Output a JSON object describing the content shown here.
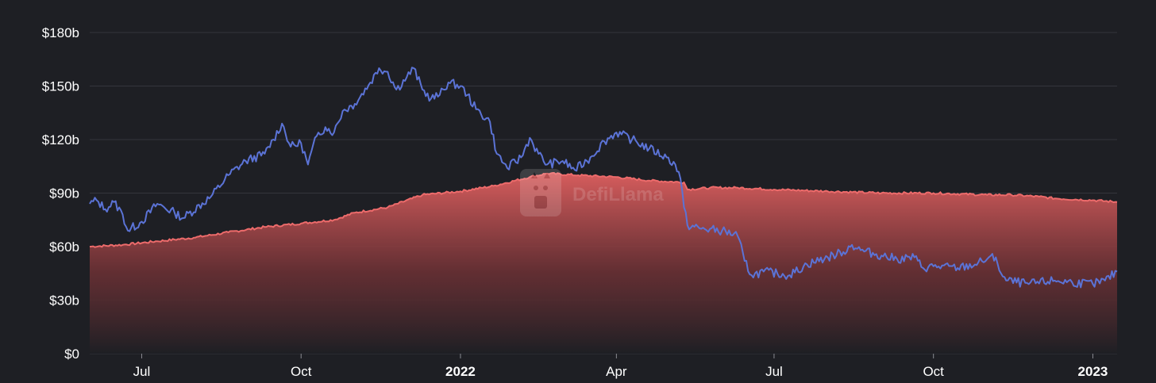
{
  "watermark": {
    "text": "DefiLlama"
  },
  "colors": {
    "background": "#1e1f24",
    "grid": "#34353c",
    "tvl_line": "#ed6b6b",
    "tvl_fill_top": "#e06060",
    "price_line": "#5b73d6"
  },
  "chart_data": {
    "type": "area",
    "title": "",
    "xlabel": "",
    "ylabel": "",
    "ylim": [
      0,
      180
    ],
    "y_unit": "$b",
    "y_ticks": [
      "$0",
      "$30b",
      "$60b",
      "$90b",
      "$120b",
      "$150b",
      "$180b"
    ],
    "y_tick_values": [
      0,
      30,
      60,
      90,
      120,
      150,
      180
    ],
    "x_ticks": [
      {
        "label": "Jul",
        "date": "2021-07-01",
        "bold": false
      },
      {
        "label": "Oct",
        "date": "2021-10-01",
        "bold": false
      },
      {
        "label": "2022",
        "date": "2022-01-01",
        "bold": true
      },
      {
        "label": "Apr",
        "date": "2022-04-01",
        "bold": false
      },
      {
        "label": "Jul",
        "date": "2022-07-01",
        "bold": false
      },
      {
        "label": "Oct",
        "date": "2022-10-01",
        "bold": false
      },
      {
        "label": "2023",
        "date": "2023-01-01",
        "bold": true
      }
    ],
    "x_range": [
      "2021-06-01",
      "2023-01-15"
    ],
    "grid": true,
    "legend": "none",
    "series": [
      {
        "kind": "area",
        "points": [
          [
            "2021-06-01",
            60
          ],
          [
            "2021-06-20",
            61
          ],
          [
            "2021-07-10",
            63
          ],
          [
            "2021-07-31",
            65
          ],
          [
            "2021-08-20",
            68
          ],
          [
            "2021-09-10",
            71
          ],
          [
            "2021-10-01",
            73
          ],
          [
            "2021-10-20",
            75
          ],
          [
            "2021-11-01",
            79
          ],
          [
            "2021-11-20",
            82
          ],
          [
            "2021-12-10",
            89
          ],
          [
            "2022-01-01",
            91
          ],
          [
            "2022-01-20",
            94
          ],
          [
            "2022-02-10",
            99
          ],
          [
            "2022-02-20",
            101
          ],
          [
            "2022-03-10",
            100
          ],
          [
            "2022-04-01",
            99
          ],
          [
            "2022-04-20",
            97
          ],
          [
            "2022-05-10",
            96
          ],
          [
            "2022-05-12",
            92
          ],
          [
            "2022-05-25",
            93
          ],
          [
            "2022-06-10",
            93
          ],
          [
            "2022-07-01",
            92
          ],
          [
            "2022-08-01",
            91
          ],
          [
            "2022-09-01",
            90
          ],
          [
            "2022-10-01",
            90
          ],
          [
            "2022-11-01",
            89
          ],
          [
            "2022-11-15",
            89
          ],
          [
            "2022-12-01",
            88
          ],
          [
            "2022-12-10",
            87
          ],
          [
            "2023-01-01",
            86
          ],
          [
            "2023-01-15",
            85
          ]
        ]
      },
      {
        "kind": "line",
        "points": [
          [
            "2021-06-01",
            84
          ],
          [
            "2021-06-05",
            86
          ],
          [
            "2021-06-10",
            81
          ],
          [
            "2021-06-15",
            85
          ],
          [
            "2021-06-20",
            78
          ],
          [
            "2021-06-23",
            69
          ],
          [
            "2021-07-01",
            74
          ],
          [
            "2021-07-10",
            84
          ],
          [
            "2021-07-20",
            79
          ],
          [
            "2021-07-25",
            76
          ],
          [
            "2021-08-10",
            88
          ],
          [
            "2021-08-20",
            100
          ],
          [
            "2021-08-30",
            108
          ],
          [
            "2021-09-10",
            112
          ],
          [
            "2021-09-15",
            120
          ],
          [
            "2021-09-20",
            129
          ],
          [
            "2021-09-25",
            116
          ],
          [
            "2021-10-01",
            118
          ],
          [
            "2021-10-05",
            106
          ],
          [
            "2021-10-10",
            122
          ],
          [
            "2021-10-15",
            127
          ],
          [
            "2021-10-20",
            124
          ],
          [
            "2021-10-25",
            136
          ],
          [
            "2021-11-01",
            140
          ],
          [
            "2021-11-10",
            152
          ],
          [
            "2021-11-15",
            160
          ],
          [
            "2021-11-20",
            158
          ],
          [
            "2021-11-25",
            148
          ],
          [
            "2021-12-01",
            155
          ],
          [
            "2021-12-05",
            160
          ],
          [
            "2021-12-10",
            148
          ],
          [
            "2021-12-15",
            143
          ],
          [
            "2021-12-20",
            145
          ],
          [
            "2021-12-25",
            152
          ],
          [
            "2022-01-01",
            150
          ],
          [
            "2022-01-05",
            145
          ],
          [
            "2022-01-10",
            137
          ],
          [
            "2022-01-18",
            130
          ],
          [
            "2022-01-22",
            112
          ],
          [
            "2022-01-28",
            104
          ],
          [
            "2022-02-05",
            110
          ],
          [
            "2022-02-10",
            121
          ],
          [
            "2022-02-15",
            112
          ],
          [
            "2022-02-20",
            106
          ],
          [
            "2022-03-01",
            108
          ],
          [
            "2022-03-08",
            103
          ],
          [
            "2022-03-15",
            108
          ],
          [
            "2022-03-25",
            119
          ],
          [
            "2022-04-01",
            124
          ],
          [
            "2022-04-10",
            120
          ],
          [
            "2022-04-20",
            115
          ],
          [
            "2022-04-30",
            110
          ],
          [
            "2022-05-05",
            106
          ],
          [
            "2022-05-08",
            98
          ],
          [
            "2022-05-10",
            82
          ],
          [
            "2022-05-12",
            72
          ],
          [
            "2022-05-20",
            70
          ],
          [
            "2022-06-01",
            69
          ],
          [
            "2022-06-10",
            66
          ],
          [
            "2022-06-14",
            52
          ],
          [
            "2022-06-18",
            44
          ],
          [
            "2022-06-25",
            46
          ],
          [
            "2022-07-10",
            44
          ],
          [
            "2022-07-20",
            50
          ],
          [
            "2022-08-01",
            54
          ],
          [
            "2022-08-10",
            57
          ],
          [
            "2022-08-15",
            61
          ],
          [
            "2022-08-20",
            58
          ],
          [
            "2022-09-01",
            55
          ],
          [
            "2022-09-10",
            53
          ],
          [
            "2022-09-20",
            54
          ],
          [
            "2022-09-25",
            48
          ],
          [
            "2022-10-01",
            49
          ],
          [
            "2022-10-15",
            48
          ],
          [
            "2022-10-25",
            50
          ],
          [
            "2022-11-01",
            53
          ],
          [
            "2022-11-06",
            54
          ],
          [
            "2022-11-09",
            45
          ],
          [
            "2022-11-12",
            41
          ],
          [
            "2022-11-25",
            39
          ],
          [
            "2022-12-10",
            41
          ],
          [
            "2022-12-20",
            40
          ],
          [
            "2023-01-01",
            39
          ],
          [
            "2023-01-08",
            41
          ],
          [
            "2023-01-15",
            46
          ]
        ]
      }
    ]
  }
}
